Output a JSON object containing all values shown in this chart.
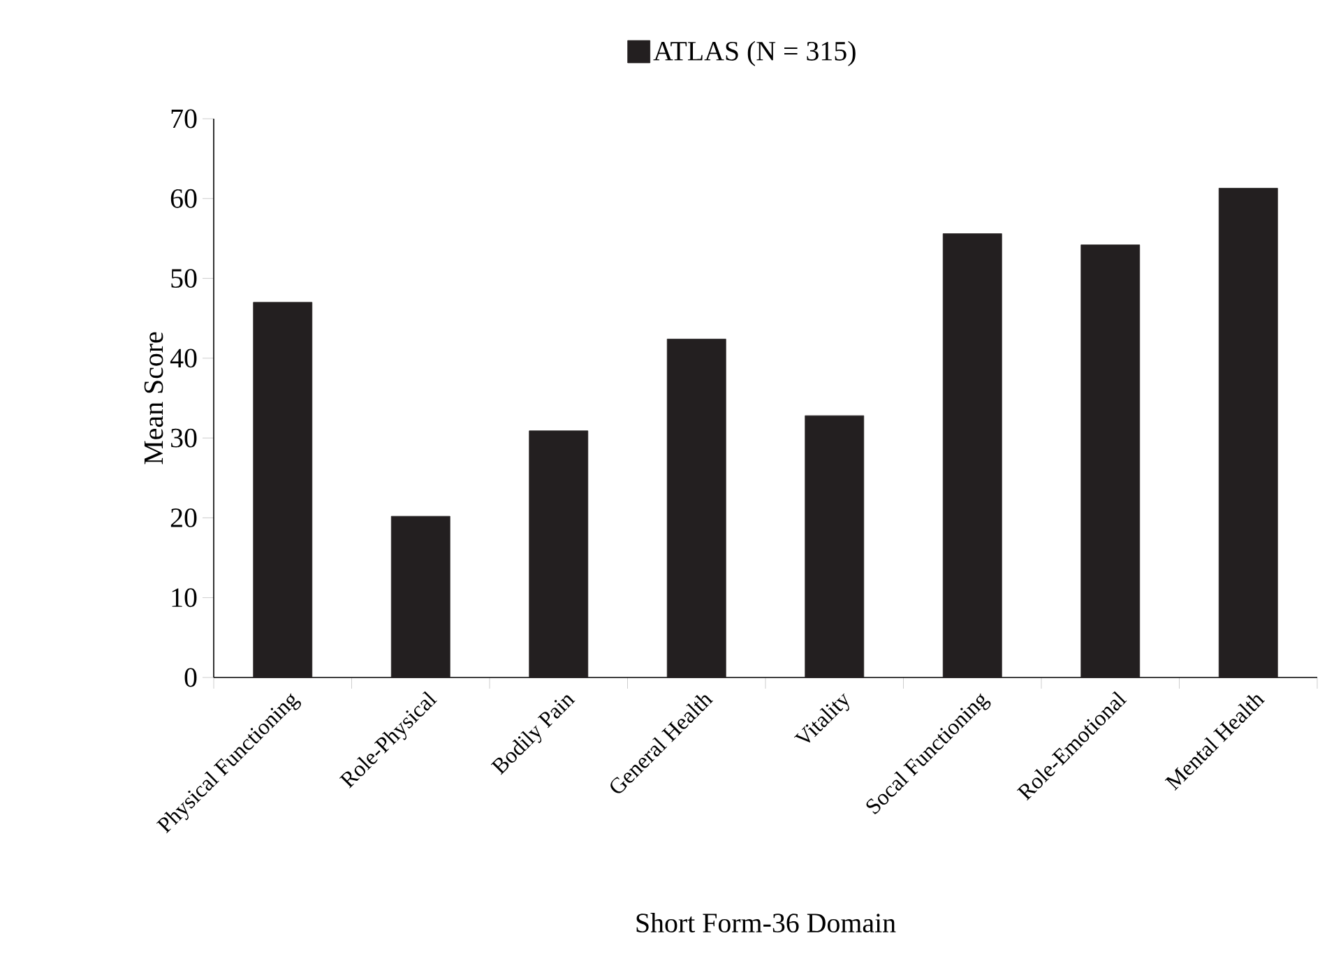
{
  "chart_data": {
    "type": "bar",
    "xlabel": "Short Form-36 Domain",
    "ylabel": "Mean Score",
    "categories": [
      "Physical Functioning",
      "Role-Physical",
      "Bodily Pain",
      "General Health",
      "Vitality",
      "Socal Functioning",
      "Role-Emotional",
      "Mental Health"
    ],
    "series": [
      {
        "name": "ATLAS (N = 315)",
        "color": "#231f20",
        "values": [
          47.0,
          20.2,
          30.9,
          42.4,
          32.8,
          55.6,
          54.2,
          61.3
        ]
      }
    ],
    "ylim": [
      0,
      70
    ],
    "yticks": [
      0,
      10,
      20,
      30,
      40,
      50,
      60,
      70
    ],
    "legend": "top",
    "grid": false
  }
}
